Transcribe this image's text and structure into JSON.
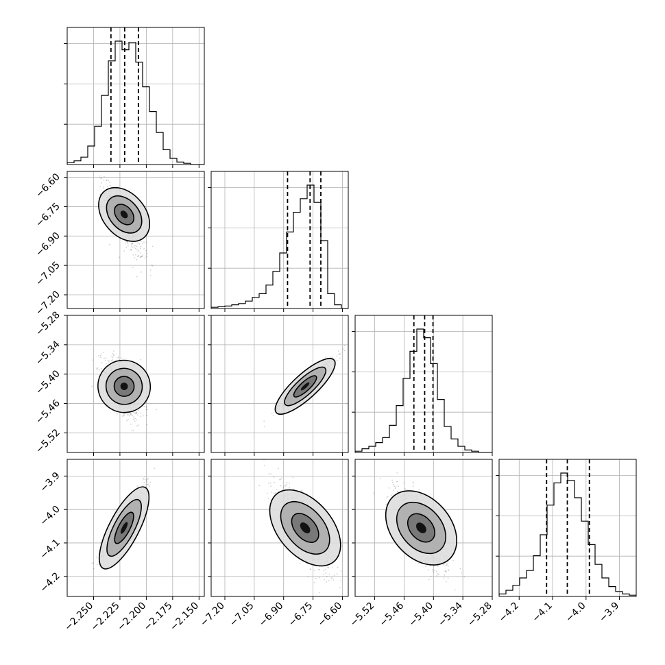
{
  "colors": {
    "background": "#ffffff",
    "axes_frame": "#000000",
    "grid": "#b0b0b0",
    "histogram": "#000000",
    "quantile_line": "#000000",
    "scatter_points": "#000000",
    "density_shades": [
      "#dcdcdc",
      "#a9a9a9",
      "#6e6e6e",
      "#000000"
    ]
  },
  "chart_data": {
    "type": "corner",
    "title": "",
    "grid": true,
    "parameters": [
      {
        "label": "",
        "range": [
          -2.275,
          -2.145
        ],
        "ticks": [
          -2.25,
          -2.225,
          -2.2,
          -2.175,
          -2.15
        ],
        "tick_labels": [
          "−2.250",
          "−2.225",
          "−2.200",
          "−2.175",
          "−2.150"
        ],
        "quantiles": [
          -2.2335,
          -2.2205,
          -2.2075
        ],
        "histogram": [
          0.015,
          0.03,
          0.06,
          0.15,
          0.31,
          0.56,
          0.84,
          1.0,
          0.93,
          0.99,
          0.83,
          0.63,
          0.43,
          0.26,
          0.12,
          0.05,
          0.02,
          0.01,
          0.0,
          0.0
        ]
      },
      {
        "label": "",
        "range": [
          -7.27,
          -6.57
        ],
        "ticks": [
          -7.2,
          -7.05,
          -6.9,
          -6.75,
          -6.6
        ],
        "tick_labels": [
          "−7.20",
          "−7.05",
          "−6.90",
          "−6.75",
          "−6.60"
        ],
        "quantiles": [
          -6.88,
          -6.765,
          -6.71
        ],
        "histogram": [
          0.01,
          0.015,
          0.02,
          0.03,
          0.04,
          0.06,
          0.09,
          0.12,
          0.19,
          0.3,
          0.45,
          0.62,
          0.78,
          0.89,
          1.0,
          0.86,
          0.55,
          0.12,
          0.03,
          0.0
        ]
      },
      {
        "label": "",
        "range": [
          -5.56,
          -5.28
        ],
        "ticks": [
          -5.52,
          -5.46,
          -5.4,
          -5.34,
          -5.28
        ],
        "tick_labels": [
          "−5.52",
          "−5.46",
          "−5.40",
          "−5.34",
          "−5.28"
        ],
        "quantiles": [
          -5.44,
          -5.418,
          -5.401
        ],
        "histogram": [
          0.01,
          0.03,
          0.05,
          0.08,
          0.12,
          0.22,
          0.38,
          0.6,
          0.82,
          1.0,
          0.93,
          0.72,
          0.43,
          0.21,
          0.11,
          0.05,
          0.02,
          0.01,
          0.0,
          0.0
        ]
      },
      {
        "label": "",
        "range": [
          -4.26,
          -3.85
        ],
        "ticks": [
          -4.2,
          -4.1,
          -4.0,
          -3.9
        ],
        "tick_labels": [
          "−4.2",
          "−4.1",
          "−4.0",
          "−3.9"
        ],
        "quantiles": [
          -4.118,
          -4.056,
          -3.99
        ],
        "histogram": [
          0.02,
          0.05,
          0.09,
          0.15,
          0.21,
          0.33,
          0.5,
          0.74,
          0.92,
          1.0,
          0.94,
          0.8,
          0.61,
          0.42,
          0.26,
          0.15,
          0.08,
          0.04,
          0.02,
          0.01
        ]
      }
    ],
    "pairs": [
      {
        "x": 0,
        "y": 1,
        "center": [
          -2.221,
          -6.79
        ],
        "spread": [
          0.009,
          0.072
        ],
        "corr": -0.78,
        "skew_y": 1.5
      },
      {
        "x": 0,
        "y": 2,
        "center": [
          -2.221,
          -5.425
        ],
        "spread": [
          0.0095,
          0.028
        ],
        "corr": -0.55,
        "skew_y": 1.2
      },
      {
        "x": 1,
        "y": 2,
        "center": [
          -6.79,
          -5.425
        ],
        "spread": [
          0.07,
          0.027
        ],
        "corr": 0.95,
        "skew_y": 0.9
      },
      {
        "x": 0,
        "y": 3,
        "center": [
          -2.221,
          -4.055
        ],
        "spread": [
          0.0095,
          0.06
        ],
        "corr": 0.96,
        "skew_y": 0.6
      },
      {
        "x": 1,
        "y": 3,
        "center": [
          -6.79,
          -4.055
        ],
        "spread": [
          0.07,
          0.06
        ],
        "corr": -0.8,
        "skew_y": 1.1
      },
      {
        "x": 2,
        "y": 3,
        "center": [
          -5.425,
          -4.055
        ],
        "spread": [
          0.027,
          0.06
        ],
        "corr": -0.75,
        "skew_y": 1.1
      }
    ]
  }
}
